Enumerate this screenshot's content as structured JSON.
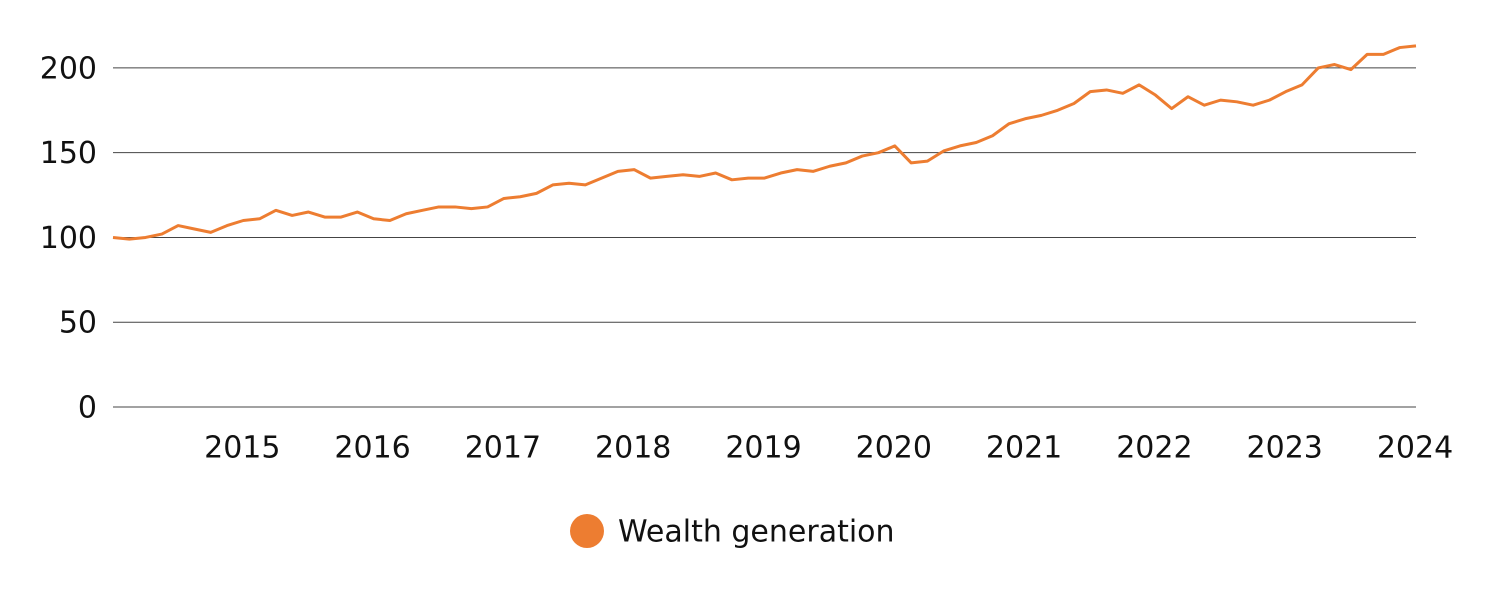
{
  "chart_data": {
    "type": "line",
    "x": [
      2014,
      2014.125,
      2014.25,
      2014.375,
      2014.5,
      2014.625,
      2014.75,
      2014.875,
      2015,
      2015.125,
      2015.25,
      2015.375,
      2015.5,
      2015.625,
      2015.75,
      2015.875,
      2016,
      2016.125,
      2016.25,
      2016.375,
      2016.5,
      2016.625,
      2016.75,
      2016.875,
      2017,
      2017.125,
      2017.25,
      2017.375,
      2017.5,
      2017.625,
      2017.75,
      2017.875,
      2018,
      2018.125,
      2018.25,
      2018.375,
      2018.5,
      2018.625,
      2018.75,
      2018.875,
      2019,
      2019.125,
      2019.25,
      2019.375,
      2019.5,
      2019.625,
      2019.75,
      2019.875,
      2020,
      2020.125,
      2020.25,
      2020.375,
      2020.5,
      2020.625,
      2020.75,
      2020.875,
      2021,
      2021.125,
      2021.25,
      2021.375,
      2021.5,
      2021.625,
      2021.75,
      2021.875,
      2022,
      2022.125,
      2022.25,
      2022.375,
      2022.5,
      2022.625,
      2022.75,
      2022.875,
      2023,
      2023.125,
      2023.25,
      2023.375,
      2023.5,
      2023.625,
      2023.75,
      2023.875,
      2024
    ],
    "series": [
      {
        "name": "Wealth generation",
        "color": "#ed7d31",
        "values": [
          100,
          99,
          100,
          102,
          107,
          105,
          103,
          107,
          110,
          111,
          116,
          113,
          115,
          112,
          112,
          115,
          111,
          110,
          114,
          116,
          118,
          118,
          117,
          118,
          123,
          124,
          126,
          131,
          132,
          131,
          135,
          139,
          140,
          135,
          136,
          137,
          136,
          138,
          134,
          135,
          135,
          138,
          140,
          139,
          142,
          144,
          148,
          150,
          154,
          144,
          145,
          151,
          154,
          156,
          160,
          167,
          170,
          172,
          175,
          179,
          186,
          187,
          185,
          190,
          184,
          176,
          183,
          178,
          181,
          180,
          178,
          181,
          186,
          190,
          200,
          202,
          199,
          208,
          208,
          212,
          213
        ]
      }
    ],
    "xlim": [
      2014,
      2024
    ],
    "xticks": [
      2015,
      2016,
      2017,
      2018,
      2019,
      2020,
      2021,
      2022,
      2023,
      2024
    ],
    "ylim": [
      0,
      220
    ],
    "yticks": [
      0,
      50,
      100,
      150,
      200
    ],
    "grid": true,
    "legend": "bottom"
  }
}
